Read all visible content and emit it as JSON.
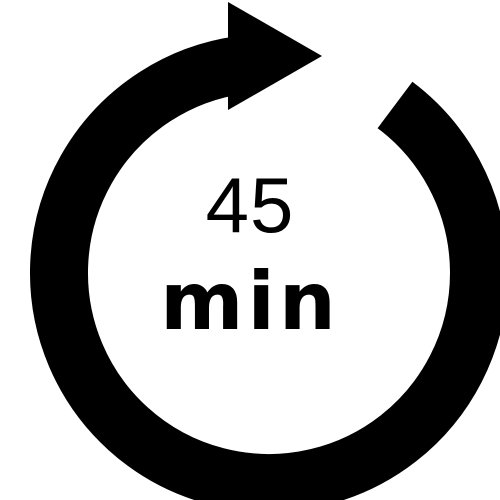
{
  "timer_icon": {
    "icon": "clockwise-arrow-icon",
    "value": "45",
    "unit": "min",
    "color": "#000000",
    "background": "#ffffff"
  }
}
